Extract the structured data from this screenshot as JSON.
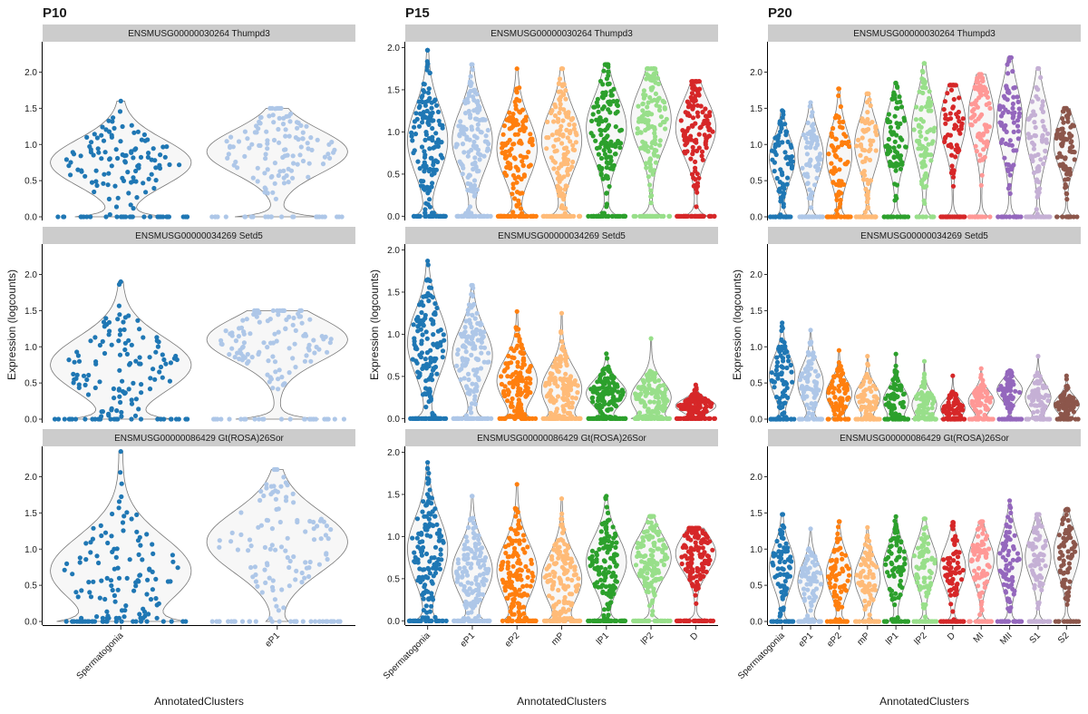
{
  "chart_data": [
    {
      "type": "violin",
      "title": "P10",
      "xlabel": "AnnotatedClusters",
      "ylabel": "Expression (logcounts)",
      "categories": [
        "Spermatogonia",
        "eP1"
      ],
      "colors": [
        "#1f77b4",
        "#aec7e8"
      ],
      "ylim": [
        -0.05,
        2.42
      ],
      "yticks": [
        0.0,
        0.5,
        1.0,
        1.5,
        2.0
      ],
      "y_tick_labels": [
        "0.0",
        "0.5",
        "1.0",
        "1.5",
        "2.0"
      ],
      "panels": [
        {
          "gene": "ENSMUSG00000030264 Thumpd3",
          "series": [
            {
              "category": "Spermatogonia",
              "max": 1.6,
              "median": 0.0,
              "upper_mode": 0.75
            },
            {
              "category": "eP1",
              "max": 1.5,
              "median": 0.0,
              "upper_mode": 0.9
            }
          ]
        },
        {
          "gene": "ENSMUSG00000034269 Setd5",
          "series": [
            {
              "category": "Spermatogonia",
              "max": 1.9,
              "median": 0.0,
              "upper_mode": 0.75
            },
            {
              "category": "eP1",
              "max": 1.5,
              "median": 0.0,
              "upper_mode": 1.1
            }
          ]
        },
        {
          "gene": "ENSMUSG00000086429 Gt(ROSA)26Sor",
          "series": [
            {
              "category": "Spermatogonia",
              "max": 2.35,
              "median": 0.0,
              "upper_mode": 0.7
            },
            {
              "category": "eP1",
              "max": 2.1,
              "median": 0.9,
              "upper_mode": 1.1
            }
          ]
        }
      ]
    },
    {
      "type": "violin",
      "title": "P15",
      "xlabel": "AnnotatedClusters",
      "ylabel": "Expression (logcounts)",
      "categories": [
        "Spermatogonia",
        "eP1",
        "eP2",
        "mP",
        "lP1",
        "lP2",
        "D"
      ],
      "colors": [
        "#1f77b4",
        "#aec7e8",
        "#ff7f0e",
        "#ffbb78",
        "#2ca02c",
        "#98df8a",
        "#d62728"
      ],
      "ylim": [
        -0.05,
        2.07
      ],
      "yticks": [
        0.0,
        0.5,
        1.0,
        1.5,
        2.0
      ],
      "y_tick_labels": [
        "0.0",
        "0.5",
        "1.0",
        "1.5",
        "2.0"
      ],
      "panels": [
        {
          "gene": "ENSMUSG00000030264 Thumpd3",
          "series": [
            {
              "category": "Spermatogonia",
              "max": 1.97,
              "upper_mode": 0.9
            },
            {
              "category": "eP1",
              "max": 1.8,
              "upper_mode": 0.9
            },
            {
              "category": "eP2",
              "max": 1.75,
              "upper_mode": 0.8
            },
            {
              "category": "mP",
              "max": 1.75,
              "upper_mode": 0.9
            },
            {
              "category": "lP1",
              "max": 1.8,
              "upper_mode": 1.05
            },
            {
              "category": "lP2",
              "max": 1.75,
              "upper_mode": 1.15
            },
            {
              "category": "D",
              "max": 1.6,
              "upper_mode": 1.05
            }
          ]
        },
        {
          "gene": "ENSMUSG00000034269 Setd5",
          "series": [
            {
              "category": "Spermatogonia",
              "max": 1.87,
              "upper_mode": 0.9
            },
            {
              "category": "eP1",
              "max": 1.58,
              "upper_mode": 0.75
            },
            {
              "category": "eP2",
              "max": 1.27,
              "upper_mode": 0.45
            },
            {
              "category": "mP",
              "max": 1.25,
              "upper_mode": 0.35
            },
            {
              "category": "lP1",
              "max": 0.77,
              "upper_mode": 0.3
            },
            {
              "category": "lP2",
              "max": 0.95,
              "upper_mode": 0.25
            },
            {
              "category": "D",
              "max": 0.4,
              "upper_mode": 0.15
            }
          ]
        },
        {
          "gene": "ENSMUSG00000086429 Gt(ROSA)26Sor",
          "series": [
            {
              "category": "Spermatogonia",
              "max": 1.88,
              "upper_mode": 0.85
            },
            {
              "category": "eP1",
              "max": 1.48,
              "upper_mode": 0.6
            },
            {
              "category": "eP2",
              "max": 1.62,
              "upper_mode": 0.6
            },
            {
              "category": "mP",
              "max": 1.45,
              "upper_mode": 0.5
            },
            {
              "category": "lP1",
              "max": 1.48,
              "upper_mode": 0.7
            },
            {
              "category": "lP2",
              "max": 1.24,
              "upper_mode": 0.75
            },
            {
              "category": "D",
              "max": 1.1,
              "upper_mode": 0.8
            }
          ]
        }
      ]
    },
    {
      "type": "violin",
      "title": "P20",
      "xlabel": "AnnotatedClusters",
      "ylabel": "Expression (logcounts)",
      "categories": [
        "Spermatogonia",
        "eP1",
        "eP2",
        "mP",
        "lP1",
        "lP2",
        "D",
        "MI",
        "MII",
        "S1",
        "S2"
      ],
      "colors": [
        "#1f77b4",
        "#aec7e8",
        "#ff7f0e",
        "#ffbb78",
        "#2ca02c",
        "#98df8a",
        "#d62728",
        "#ff9896",
        "#9467bd",
        "#c5b0d5",
        "#8c564b"
      ],
      "ylim": [
        -0.05,
        2.42
      ],
      "yticks": [
        0.0,
        0.5,
        1.0,
        1.5,
        2.0
      ],
      "y_tick_labels": [
        "0.0",
        "0.5",
        "1.0",
        "1.5",
        "2.0"
      ],
      "panels": [
        {
          "gene": "ENSMUSG00000030264 Thumpd3",
          "series": [
            {
              "category": "Spermatogonia",
              "max": 1.47,
              "upper_mode": 0.8
            },
            {
              "category": "eP1",
              "max": 1.58,
              "upper_mode": 0.85
            },
            {
              "category": "eP2",
              "max": 1.77,
              "upper_mode": 0.85
            },
            {
              "category": "mP",
              "max": 1.7,
              "upper_mode": 1.0
            },
            {
              "category": "lP1",
              "max": 1.85,
              "upper_mode": 1.1
            },
            {
              "category": "lP2",
              "max": 2.12,
              "upper_mode": 1.2
            },
            {
              "category": "D",
              "max": 1.82,
              "upper_mode": 1.3
            },
            {
              "category": "MI",
              "max": 1.97,
              "upper_mode": 1.4
            },
            {
              "category": "MII",
              "max": 2.2,
              "upper_mode": 1.35
            },
            {
              "category": "S1",
              "max": 2.05,
              "upper_mode": 1.2
            },
            {
              "category": "S2",
              "max": 1.5,
              "upper_mode": 1.0
            }
          ]
        },
        {
          "gene": "ENSMUSG00000034269 Setd5",
          "series": [
            {
              "category": "Spermatogonia",
              "max": 1.33,
              "upper_mode": 0.6
            },
            {
              "category": "eP1",
              "max": 1.23,
              "upper_mode": 0.5
            },
            {
              "category": "eP2",
              "max": 0.95,
              "upper_mode": 0.35
            },
            {
              "category": "mP",
              "max": 0.87,
              "upper_mode": 0.3
            },
            {
              "category": "lP1",
              "max": 0.9,
              "upper_mode": 0.25
            },
            {
              "category": "lP2",
              "max": 0.8,
              "upper_mode": 0.2
            },
            {
              "category": "D",
              "max": 0.6,
              "upper_mode": 0.15
            },
            {
              "category": "MI",
              "max": 0.7,
              "upper_mode": 0.25
            },
            {
              "category": "MII",
              "max": 0.67,
              "upper_mode": 0.4
            },
            {
              "category": "S1",
              "max": 0.87,
              "upper_mode": 0.3
            },
            {
              "category": "S2",
              "max": 0.6,
              "upper_mode": 0.2
            }
          ]
        },
        {
          "gene": "ENSMUSG00000086429 Gt(ROSA)26Sor",
          "series": [
            {
              "category": "Spermatogonia",
              "max": 1.48,
              "upper_mode": 0.75
            },
            {
              "category": "eP1",
              "max": 1.28,
              "upper_mode": 0.55
            },
            {
              "category": "eP2",
              "max": 1.38,
              "upper_mode": 0.65
            },
            {
              "category": "mP",
              "max": 1.3,
              "upper_mode": 0.6
            },
            {
              "category": "lP1",
              "max": 1.45,
              "upper_mode": 0.75
            },
            {
              "category": "lP2",
              "max": 1.42,
              "upper_mode": 0.8
            },
            {
              "category": "D",
              "max": 1.37,
              "upper_mode": 0.75
            },
            {
              "category": "MI",
              "max": 1.38,
              "upper_mode": 0.85
            },
            {
              "category": "MII",
              "max": 1.67,
              "upper_mode": 0.85
            },
            {
              "category": "S1",
              "max": 1.48,
              "upper_mode": 0.9
            },
            {
              "category": "S2",
              "max": 1.55,
              "upper_mode": 0.95
            }
          ]
        }
      ]
    }
  ]
}
